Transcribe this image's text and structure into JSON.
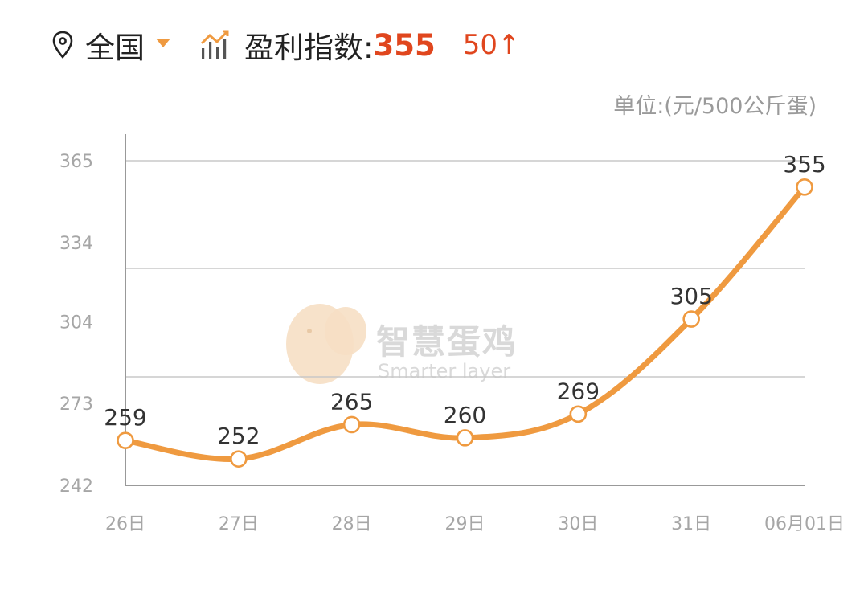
{
  "header": {
    "region": "全国",
    "index_label": "盈利指数:",
    "index_value": "355",
    "change": "50↑"
  },
  "icons": {
    "location": "location-pin-icon",
    "dropdown": "caret-down-icon",
    "index": "bar-trend-chart-icon"
  },
  "colors": {
    "accent": "#ef9a40",
    "value_red": "#e0461e",
    "grid": "#c8c8c8"
  },
  "watermark": {
    "cn": "智慧蛋鸡",
    "en": "Smarter layer"
  },
  "chart_data": {
    "type": "line",
    "unit": "单位:(元/500公斤蛋)",
    "categories": [
      "26日",
      "27日",
      "28日",
      "29日",
      "30日",
      "31日",
      "06月01日"
    ],
    "values": [
      259,
      252,
      265,
      260,
      269,
      305,
      355
    ],
    "labels": [
      "259",
      "252",
      "265",
      "260",
      "269",
      "305",
      "355"
    ],
    "y_ticks": [
      242,
      273,
      304,
      334,
      365
    ],
    "ylim": [
      242,
      365
    ],
    "grid": true,
    "smooth": true
  }
}
